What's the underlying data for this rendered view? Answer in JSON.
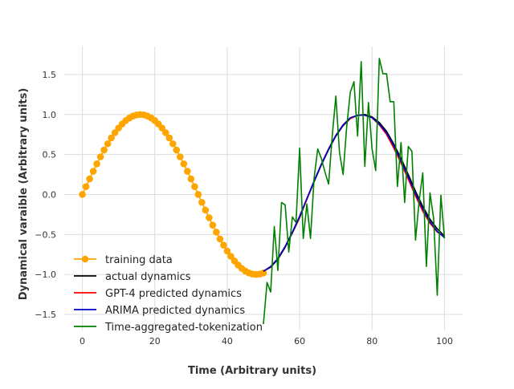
{
  "chart_data": {
    "type": "line",
    "xlabel": "Time (Arbitrary units)",
    "ylabel": "Dynamical varaible (Arbitrary units)",
    "xlim": [
      -5,
      105
    ],
    "ylim": [
      -1.7,
      1.85
    ],
    "xticks": [
      0,
      20,
      40,
      60,
      80,
      100
    ],
    "xtick_labels": [
      "0",
      "20",
      "40",
      "60",
      "80",
      "100"
    ],
    "yticks": [
      -1.5,
      -1.0,
      -0.5,
      0.0,
      0.5,
      1.0,
      1.5
    ],
    "ytick_labels": [
      "−1.5",
      "−1.0",
      "−0.5",
      "0.0",
      "0.5",
      "1.0",
      "1.5"
    ],
    "grid": true,
    "legend_position": "lower-left",
    "series": [
      {
        "name": "training data",
        "color": "#FFA500",
        "marker": "circle",
        "x": [
          0,
          1,
          2,
          3,
          4,
          5,
          6,
          7,
          8,
          9,
          10,
          11,
          12,
          13,
          14,
          15,
          16,
          17,
          18,
          19,
          20,
          21,
          22,
          23,
          24,
          25,
          26,
          27,
          28,
          29,
          30,
          31,
          32,
          33,
          34,
          35,
          36,
          37,
          38,
          39,
          40,
          41,
          42,
          43,
          44,
          45,
          46,
          47,
          48,
          49,
          50
        ],
        "y": [
          0.0,
          0.098,
          0.195,
          0.29,
          0.383,
          0.471,
          0.556,
          0.634,
          0.707,
          0.773,
          0.831,
          0.882,
          0.924,
          0.957,
          0.981,
          0.995,
          1.0,
          0.995,
          0.981,
          0.957,
          0.924,
          0.882,
          0.831,
          0.773,
          0.707,
          0.634,
          0.556,
          0.471,
          0.383,
          0.29,
          0.195,
          0.098,
          0.0,
          -0.098,
          -0.195,
          -0.29,
          -0.383,
          -0.471,
          -0.556,
          -0.634,
          -0.707,
          -0.773,
          -0.831,
          -0.882,
          -0.924,
          -0.957,
          -0.981,
          -0.995,
          -1.0,
          -0.995,
          -0.981
        ]
      },
      {
        "name": "actual dynamics",
        "color": "#000000",
        "x": [
          50,
          52,
          54,
          56,
          58,
          60,
          62,
          64,
          66,
          68,
          70,
          72,
          74,
          76,
          78,
          80,
          82,
          84,
          86,
          88,
          90,
          92,
          94,
          96,
          98,
          100
        ],
        "y": [
          -0.96,
          -0.91,
          -0.81,
          -0.66,
          -0.48,
          -0.29,
          -0.06,
          0.16,
          0.37,
          0.56,
          0.73,
          0.86,
          0.95,
          0.99,
          1.0,
          0.97,
          0.9,
          0.79,
          0.63,
          0.45,
          0.25,
          0.04,
          -0.15,
          -0.31,
          -0.43,
          -0.52
        ]
      },
      {
        "name": "GPT-4 predicted dynamics",
        "color": "#FF0000",
        "x": [
          50,
          52,
          54,
          56,
          58,
          60,
          62,
          64,
          66,
          68,
          70,
          72,
          74,
          76,
          78,
          80,
          82,
          84,
          86,
          88,
          90,
          92,
          94,
          96,
          98,
          100
        ],
        "y": [
          -0.96,
          -0.9,
          -0.8,
          -0.65,
          -0.47,
          -0.28,
          -0.06,
          0.17,
          0.38,
          0.57,
          0.74,
          0.87,
          0.95,
          0.99,
          0.99,
          0.96,
          0.87,
          0.75,
          0.58,
          0.39,
          0.19,
          -0.02,
          -0.21,
          -0.36,
          -0.47,
          -0.53
        ]
      },
      {
        "name": "ARIMA predicted dynamics",
        "color": "#0000CD",
        "x": [
          50,
          52,
          54,
          56,
          58,
          60,
          62,
          64,
          66,
          68,
          70,
          72,
          74,
          76,
          78,
          80,
          82,
          84,
          86,
          88,
          90,
          92,
          94,
          96,
          98,
          100
        ],
        "y": [
          -0.96,
          -0.9,
          -0.8,
          -0.65,
          -0.47,
          -0.27,
          -0.05,
          0.17,
          0.38,
          0.57,
          0.74,
          0.87,
          0.96,
          0.99,
          0.99,
          0.96,
          0.88,
          0.77,
          0.61,
          0.42,
          0.22,
          0.01,
          -0.18,
          -0.34,
          -0.46,
          -0.54
        ]
      },
      {
        "name": "Time-aggregated-tokenization",
        "color": "#008000",
        "x": [
          50,
          51,
          52,
          53,
          54,
          55,
          56,
          57,
          58,
          59,
          60,
          61,
          62,
          63,
          64,
          65,
          66,
          67,
          68,
          69,
          70,
          71,
          72,
          73,
          74,
          75,
          76,
          77,
          78,
          79,
          80,
          81,
          82,
          83,
          84,
          85,
          86,
          87,
          88,
          89,
          90,
          91,
          92,
          93,
          94,
          95,
          96,
          97,
          98,
          99,
          100
        ],
        "y": [
          -1.62,
          -1.1,
          -1.22,
          -0.4,
          -0.95,
          -0.1,
          -0.13,
          -0.72,
          -0.28,
          -0.35,
          0.58,
          -0.55,
          -0.12,
          -0.55,
          0.21,
          0.57,
          0.45,
          0.28,
          0.13,
          0.73,
          1.23,
          0.53,
          0.25,
          0.85,
          1.28,
          1.41,
          0.73,
          1.66,
          0.35,
          1.15,
          0.57,
          0.3,
          1.7,
          1.51,
          1.51,
          1.16,
          1.16,
          0.1,
          0.65,
          -0.1,
          0.6,
          0.54,
          -0.57,
          -0.08,
          0.27,
          -0.9,
          0.02,
          -0.3,
          -1.26,
          -0.01,
          -0.55
        ]
      }
    ]
  }
}
